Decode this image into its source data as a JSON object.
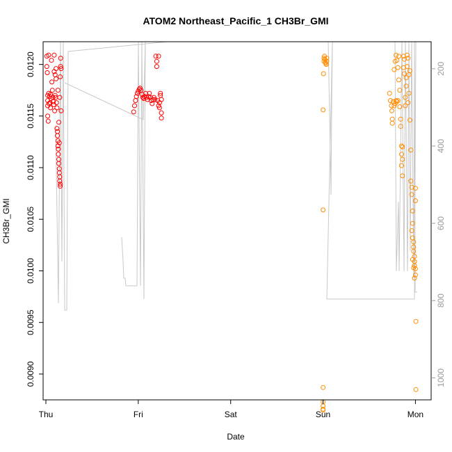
{
  "chart_data": {
    "type": "scatter",
    "title": "ATOM2 Northeast_Pacific_1 CH3Br_GMI",
    "xlabel": "Date",
    "ylabel": "CH3Br_GMI",
    "x_ticks": [
      "Thu",
      "Fri",
      "Sat",
      "Sun",
      "Mon"
    ],
    "y_ticks": [
      "0.0090",
      "0.0095",
      "0.0100",
      "0.0105",
      "0.0110",
      "0.0115",
      "0.0120"
    ],
    "y_right_ticks": [
      "200",
      "400",
      "600",
      "800",
      "1000"
    ],
    "xlim": [
      -0.03,
      4.17
    ],
    "ylim": [
      0.00875,
      0.01222
    ],
    "y_right_lim": [
      1057,
      130
    ],
    "grid": false,
    "series": [
      {
        "color": "#ff0000",
        "points": [
          [
            0.01,
            0.01208
          ],
          [
            0.01,
            0.01198
          ],
          [
            0.015,
            0.01192
          ],
          [
            0.02,
            0.0117
          ],
          [
            0.02,
            0.01165
          ],
          [
            0.02,
            0.0116
          ],
          [
            0.02,
            0.0115
          ],
          [
            0.025,
            0.01145
          ],
          [
            0.03,
            0.01209
          ],
          [
            0.03,
            0.01172
          ],
          [
            0.035,
            0.01162
          ],
          [
            0.04,
            0.01169
          ],
          [
            0.045,
            0.01163
          ],
          [
            0.05,
            0.01158
          ],
          [
            0.05,
            0.01171
          ],
          [
            0.055,
            0.01167
          ],
          [
            0.06,
            0.01204
          ],
          [
            0.065,
            0.01183
          ],
          [
            0.07,
            0.01175
          ],
          [
            0.075,
            0.01168
          ],
          [
            0.08,
            0.01164
          ],
          [
            0.085,
            0.01161
          ],
          [
            0.09,
            0.01209
          ],
          [
            0.09,
            0.01193
          ],
          [
            0.095,
            0.01155
          ],
          [
            0.1,
            0.0119
          ],
          [
            0.1,
            0.0117
          ],
          [
            0.105,
            0.01168
          ],
          [
            0.11,
            0.01196
          ],
          [
            0.11,
            0.01186
          ],
          [
            0.115,
            0.01163
          ],
          [
            0.12,
            0.01158
          ],
          [
            0.12,
            0.01138
          ],
          [
            0.125,
            0.01135
          ],
          [
            0.125,
            0.01131
          ],
          [
            0.13,
            0.01126
          ],
          [
            0.13,
            0.01121
          ],
          [
            0.135,
            0.01118
          ],
          [
            0.135,
            0.01113
          ],
          [
            0.14,
            0.01108
          ],
          [
            0.14,
            0.01104
          ],
          [
            0.145,
            0.01099
          ],
          [
            0.145,
            0.01095
          ],
          [
            0.15,
            0.01091
          ],
          [
            0.15,
            0.01087
          ],
          [
            0.155,
            0.01084
          ],
          [
            0.155,
            0.01082
          ],
          [
            0.14,
            0.01144
          ],
          [
            0.145,
            0.01124
          ],
          [
            0.15,
            0.01168
          ],
          [
            0.155,
            0.01188
          ],
          [
            0.16,
            0.01198
          ],
          [
            0.16,
            0.01206
          ],
          [
            0.165,
            0.01196
          ],
          [
            0.165,
            0.01155
          ],
          [
            0.13,
            0.01175
          ],
          [
            0.95,
            0.01154
          ],
          [
            0.96,
            0.0116
          ],
          [
            0.97,
            0.01165
          ],
          [
            0.98,
            0.01169
          ],
          [
            0.99,
            0.01172
          ],
          [
            1.0,
            0.01174
          ],
          [
            1.01,
            0.01176
          ],
          [
            1.02,
            0.01177
          ],
          [
            1.03,
            0.01175
          ],
          [
            1.04,
            0.01171
          ],
          [
            1.05,
            0.01168
          ],
          [
            1.06,
            0.01167
          ],
          [
            1.07,
            0.01169
          ],
          [
            1.08,
            0.01172
          ],
          [
            1.09,
            0.01168
          ],
          [
            1.1,
            0.01166
          ],
          [
            1.11,
            0.01169
          ],
          [
            1.12,
            0.01172
          ],
          [
            1.13,
            0.01168
          ],
          [
            1.14,
            0.01165
          ],
          [
            1.15,
            0.01162
          ],
          [
            1.16,
            0.01166
          ],
          [
            1.17,
            0.01168
          ],
          [
            1.18,
            0.01166
          ],
          [
            1.19,
            0.01208
          ],
          [
            1.2,
            0.01203
          ],
          [
            1.2,
            0.01198
          ],
          [
            1.21,
            0.01165
          ],
          [
            1.22,
            0.0116
          ],
          [
            1.22,
            0.01208
          ],
          [
            1.23,
            0.01163
          ],
          [
            1.23,
            0.01158
          ],
          [
            1.24,
            0.01172
          ],
          [
            1.24,
            0.0117
          ],
          [
            1.25,
            0.01166
          ],
          [
            1.25,
            0.01153
          ],
          [
            1.25,
            0.01148
          ]
        ]
      },
      {
        "color": "#ff8c00",
        "points": [
          [
            3.0,
            0.01059
          ],
          [
            3.0,
            0.01156
          ],
          [
            3.005,
            0.01191
          ],
          [
            3.01,
            0.01203
          ],
          [
            3.01,
            0.01206
          ],
          [
            3.015,
            0.01208
          ],
          [
            3.02,
            0.01205
          ],
          [
            3.025,
            0.01202
          ],
          [
            3.03,
            0.01201
          ],
          [
            3.035,
            0.012
          ],
          [
            3.04,
            0.01203
          ],
          [
            3.04,
            0.01206
          ],
          [
            3.0,
            0.00887
          ],
          [
            3.0,
            0.00873
          ],
          [
            3.0,
            0.00869
          ],
          [
            3.0,
            0.00866
          ],
          [
            3.0,
            0.00865
          ],
          [
            3.72,
            0.01172
          ],
          [
            3.73,
            0.01165
          ],
          [
            3.74,
            0.0116
          ],
          [
            3.745,
            0.01155
          ],
          [
            3.75,
            0.01147
          ],
          [
            3.75,
            0.01143
          ],
          [
            3.76,
            0.01164
          ],
          [
            3.77,
            0.0116
          ],
          [
            3.78,
            0.01162
          ],
          [
            3.79,
            0.01165
          ],
          [
            3.8,
            0.01164
          ],
          [
            3.81,
            0.01165
          ],
          [
            3.77,
            0.01195
          ],
          [
            3.78,
            0.01203
          ],
          [
            3.79,
            0.01209
          ],
          [
            3.8,
            0.01204
          ],
          [
            3.81,
            0.01197
          ],
          [
            3.82,
            0.01208
          ],
          [
            3.82,
            0.01185
          ],
          [
            3.83,
            0.01175
          ],
          [
            3.83,
            0.01159
          ],
          [
            3.84,
            0.01147
          ],
          [
            3.84,
            0.0114
          ],
          [
            3.85,
            0.01121
          ],
          [
            3.85,
            0.01113
          ],
          [
            3.85,
            0.01102
          ],
          [
            3.86,
            0.01092
          ],
          [
            3.86,
            0.01108
          ],
          [
            3.86,
            0.0112
          ],
          [
            3.87,
            0.01208
          ],
          [
            3.87,
            0.01197
          ],
          [
            3.88,
            0.01191
          ],
          [
            3.88,
            0.01205
          ],
          [
            3.89,
            0.01168
          ],
          [
            3.89,
            0.0116
          ],
          [
            3.9,
            0.01179
          ],
          [
            3.9,
            0.01187
          ],
          [
            3.91,
            0.01198
          ],
          [
            3.91,
            0.01209
          ],
          [
            3.92,
            0.01163
          ],
          [
            3.92,
            0.01206
          ],
          [
            3.93,
            0.0119
          ],
          [
            3.93,
            0.01172
          ],
          [
            3.94,
            0.01194
          ],
          [
            3.94,
            0.01146
          ],
          [
            3.95,
            0.01117
          ],
          [
            3.95,
            0.01087
          ],
          [
            3.96,
            0.01081
          ],
          [
            3.96,
            0.01074
          ],
          [
            3.97,
            0.01058
          ],
          [
            3.97,
            0.01046
          ],
          [
            3.97,
            0.01032
          ],
          [
            3.98,
            0.01028
          ],
          [
            3.98,
            0.01023
          ],
          [
            3.98,
            0.01019
          ],
          [
            3.99,
            0.01014
          ],
          [
            3.99,
            0.01009
          ],
          [
            3.99,
            0.01005
          ],
          [
            4.0,
            0.01002
          ],
          [
            4.0,
            0.00996
          ],
          [
            3.96,
            0.01039
          ],
          [
            3.97,
            0.01011
          ],
          [
            3.98,
            0.01003
          ],
          [
            3.99,
            0.00993
          ],
          [
            4.0,
            0.0108
          ],
          [
            4.0,
            0.01068
          ],
          [
            4.005,
            0.00951
          ],
          [
            4.005,
            0.00885
          ]
        ]
      }
    ]
  }
}
